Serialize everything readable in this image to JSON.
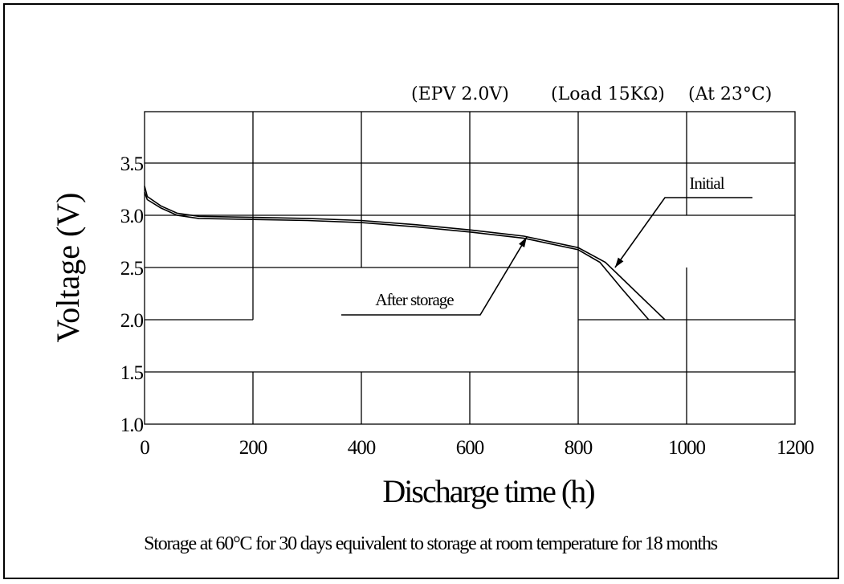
{
  "conditions": [
    "(EPV 2.0V)",
    "(Load 15KΩ)",
    "(At 23°C)"
  ],
  "caption": "Storage at 60°C for 30 days equivalent to storage at room temperature for 18 months",
  "chart_data": {
    "type": "line",
    "xlabel": "Discharge time (h)",
    "ylabel": "Voltage (V)",
    "xlim": [
      0,
      1200
    ],
    "ylim": [
      1.0,
      3.5
    ],
    "x_ticks": [
      "0",
      "200",
      "400",
      "600",
      "800",
      "1000",
      "1200"
    ],
    "y_ticks": [
      "1.0",
      "1.5",
      "2.0",
      "2.5",
      "3.0",
      "3.5"
    ],
    "series": [
      {
        "name": "Initial",
        "points": [
          [
            0,
            3.28
          ],
          [
            5,
            3.18
          ],
          [
            30,
            3.09
          ],
          [
            60,
            3.02
          ],
          [
            100,
            2.99
          ],
          [
            200,
            2.98
          ],
          [
            300,
            2.97
          ],
          [
            400,
            2.95
          ],
          [
            500,
            2.91
          ],
          [
            600,
            2.86
          ],
          [
            700,
            2.8
          ],
          [
            800,
            2.69
          ],
          [
            850,
            2.55
          ],
          [
            900,
            2.3
          ],
          [
            960,
            2.0
          ]
        ]
      },
      {
        "name": "After storage",
        "points": [
          [
            0,
            3.22
          ],
          [
            5,
            3.15
          ],
          [
            30,
            3.07
          ],
          [
            60,
            3.0
          ],
          [
            100,
            2.97
          ],
          [
            200,
            2.96
          ],
          [
            300,
            2.95
          ],
          [
            400,
            2.93
          ],
          [
            500,
            2.89
          ],
          [
            600,
            2.84
          ],
          [
            700,
            2.78
          ],
          [
            800,
            2.67
          ],
          [
            840,
            2.55
          ],
          [
            880,
            2.3
          ],
          [
            930,
            2.0
          ]
        ]
      }
    ],
    "annotations": [
      "Initial",
      "After storage"
    ]
  }
}
